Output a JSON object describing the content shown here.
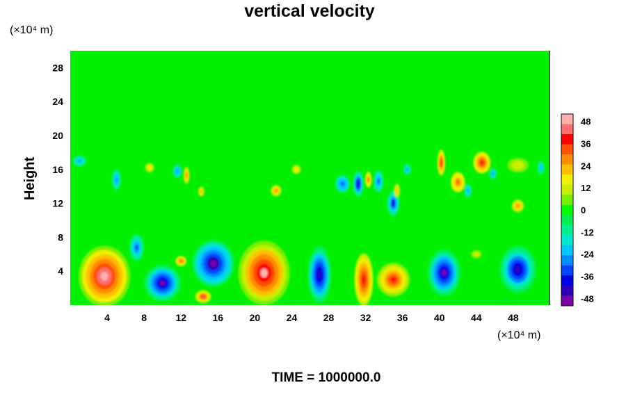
{
  "chart_data": {
    "type": "heatmap",
    "title": "vertical velocity",
    "ylabel": "Height",
    "x_unit_label": "(×10⁴ m)",
    "y_unit_label": "(×10⁴ m)",
    "footer": "TIME = 1000000.0",
    "xlim": [
      0,
      52
    ],
    "ylim": [
      0,
      30
    ],
    "x_ticks": [
      "4",
      "8",
      "12",
      "16",
      "20",
      "24",
      "28",
      "32",
      "36",
      "40",
      "44",
      "48"
    ],
    "y_ticks": [
      "4",
      "8",
      "12",
      "16",
      "20",
      "24",
      "28"
    ],
    "colorbar": {
      "range": [
        -52,
        52
      ],
      "ticks": [
        "48",
        "36",
        "24",
        "12",
        "0",
        "-12",
        "-24",
        "-36",
        "-48"
      ],
      "colors": [
        "#7a00a8",
        "#2a00b8",
        "#0000e6",
        "#0044ff",
        "#008cff",
        "#00c8ff",
        "#00e6d0",
        "#00f090",
        "#00f050",
        "#00ff00",
        "#7af000",
        "#c8f000",
        "#f0f000",
        "#ffc000",
        "#ff8c00",
        "#ff5000",
        "#ff0000",
        "#ff7070",
        "#ffb0b0"
      ]
    },
    "features": [
      {
        "kind": "max",
        "x": 3.7,
        "y": 3.4,
        "value": 52,
        "rx": 2.8,
        "ry": 3.6
      },
      {
        "kind": "max",
        "x": 21.0,
        "y": 3.8,
        "value": 50,
        "rx": 2.8,
        "ry": 3.8
      },
      {
        "kind": "max",
        "x": 31.8,
        "y": 3.0,
        "value": 40,
        "rx": 1.2,
        "ry": 3.6
      },
      {
        "kind": "max",
        "x": 35.0,
        "y": 3.0,
        "value": 42,
        "rx": 1.8,
        "ry": 2.0
      },
      {
        "kind": "max",
        "x": 12.0,
        "y": 5.2,
        "value": 36,
        "rx": 0.7,
        "ry": 0.7
      },
      {
        "kind": "max",
        "x": 14.4,
        "y": 1.0,
        "value": 44,
        "rx": 0.9,
        "ry": 0.8
      },
      {
        "kind": "min",
        "x": 10.0,
        "y": 2.6,
        "value": -50,
        "rx": 2.0,
        "ry": 2.2
      },
      {
        "kind": "min",
        "x": 15.5,
        "y": 4.9,
        "value": -52,
        "rx": 2.3,
        "ry": 2.8
      },
      {
        "kind": "min",
        "x": 27.0,
        "y": 3.6,
        "value": -48,
        "rx": 1.3,
        "ry": 3.4
      },
      {
        "kind": "min",
        "x": 40.5,
        "y": 3.8,
        "value": -50,
        "rx": 1.8,
        "ry": 2.8
      },
      {
        "kind": "min",
        "x": 48.5,
        "y": 4.2,
        "value": -46,
        "rx": 2.0,
        "ry": 2.8
      },
      {
        "kind": "min",
        "x": 7.2,
        "y": 6.8,
        "value": -32,
        "rx": 0.9,
        "ry": 1.8
      },
      {
        "kind": "min",
        "x": 1.0,
        "y": 17.0,
        "value": -28,
        "rx": 0.9,
        "ry": 0.8
      },
      {
        "kind": "min",
        "x": 5.0,
        "y": 14.8,
        "value": -30,
        "rx": 0.6,
        "ry": 1.5
      },
      {
        "kind": "max",
        "x": 8.6,
        "y": 16.2,
        "value": 20,
        "rx": 0.7,
        "ry": 0.8
      },
      {
        "kind": "min",
        "x": 11.6,
        "y": 15.8,
        "value": -30,
        "rx": 0.6,
        "ry": 1.0
      },
      {
        "kind": "max",
        "x": 12.6,
        "y": 15.3,
        "value": 30,
        "rx": 0.4,
        "ry": 1.2
      },
      {
        "kind": "max",
        "x": 14.2,
        "y": 13.4,
        "value": 26,
        "rx": 0.4,
        "ry": 0.7
      },
      {
        "kind": "max",
        "x": 22.3,
        "y": 13.5,
        "value": 30,
        "rx": 0.7,
        "ry": 0.8
      },
      {
        "kind": "max",
        "x": 24.5,
        "y": 16.0,
        "value": 18,
        "rx": 0.7,
        "ry": 0.8
      },
      {
        "kind": "min",
        "x": 29.5,
        "y": 14.3,
        "value": -36,
        "rx": 0.9,
        "ry": 1.2
      },
      {
        "kind": "min",
        "x": 31.2,
        "y": 14.3,
        "value": -46,
        "rx": 0.6,
        "ry": 1.6
      },
      {
        "kind": "max",
        "x": 32.3,
        "y": 14.8,
        "value": 34,
        "rx": 0.4,
        "ry": 1.1
      },
      {
        "kind": "min",
        "x": 33.4,
        "y": 14.6,
        "value": -34,
        "rx": 0.6,
        "ry": 1.5
      },
      {
        "kind": "min",
        "x": 35.0,
        "y": 12.0,
        "value": -44,
        "rx": 0.7,
        "ry": 1.6
      },
      {
        "kind": "max",
        "x": 35.4,
        "y": 13.5,
        "value": 24,
        "rx": 0.4,
        "ry": 1.0
      },
      {
        "kind": "min",
        "x": 36.5,
        "y": 16.0,
        "value": -28,
        "rx": 0.5,
        "ry": 0.8
      },
      {
        "kind": "max",
        "x": 40.2,
        "y": 16.8,
        "value": 38,
        "rx": 0.5,
        "ry": 1.8
      },
      {
        "kind": "max",
        "x": 42.0,
        "y": 14.5,
        "value": 34,
        "rx": 0.9,
        "ry": 1.4
      },
      {
        "kind": "min",
        "x": 43.1,
        "y": 13.5,
        "value": -28,
        "rx": 0.5,
        "ry": 1.0
      },
      {
        "kind": "max",
        "x": 44.6,
        "y": 16.8,
        "value": 40,
        "rx": 1.1,
        "ry": 1.5
      },
      {
        "kind": "min",
        "x": 45.8,
        "y": 15.5,
        "value": -28,
        "rx": 0.5,
        "ry": 0.8
      },
      {
        "kind": "max",
        "x": 48.5,
        "y": 11.7,
        "value": 30,
        "rx": 0.8,
        "ry": 0.9
      },
      {
        "kind": "min",
        "x": 51.0,
        "y": 16.2,
        "value": -24,
        "rx": 0.5,
        "ry": 1.0
      },
      {
        "kind": "max",
        "x": 44.0,
        "y": 6.0,
        "value": 14,
        "rx": 0.8,
        "ry": 0.7
      },
      {
        "kind": "max",
        "x": 48.5,
        "y": 16.5,
        "value": 14,
        "rx": 1.6,
        "ry": 1.2
      }
    ]
  }
}
